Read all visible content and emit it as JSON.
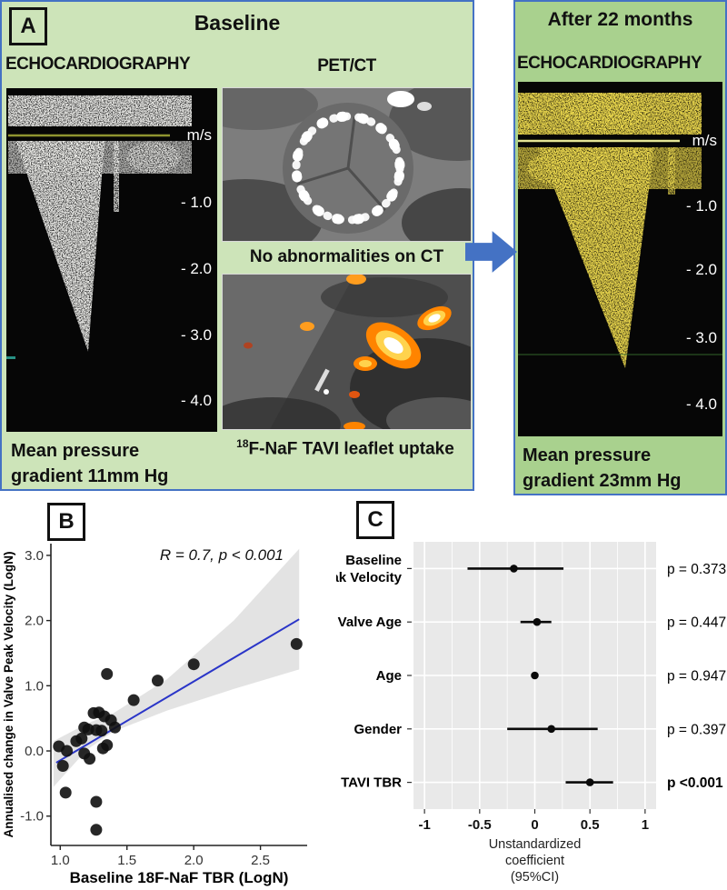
{
  "colors": {
    "panel_a_bg": "#cde4b9",
    "panel_followup_bg": "#a9d18e",
    "panel_border": "#4472c4",
    "arrow": "#4472c4",
    "regression_line": "#2a35c8",
    "ci_band": "#dcdcdc",
    "forest_bg": "#e9e9e9",
    "echo_baseline_line": "#8f9430",
    "doppler_followup_tint": "#d4af10"
  },
  "panel_a": {
    "label": "A",
    "title": "Baseline",
    "col_echo": "ECHOCARDIOGRAPHY",
    "col_petct": "PET/CT",
    "echo_scale": {
      "unit": "m/s",
      "ticks": [
        "- 1.0",
        "- 2.0",
        "- 3.0",
        "- 4.0"
      ]
    },
    "caption_ct": "No abnormalities on CT",
    "caption_pet_sup": "18",
    "caption_pet": "F-NaF TAVI leaflet uptake",
    "caption_echo_line1": "Mean pressure",
    "caption_echo_line2": "gradient 11mm Hg"
  },
  "panel_followup": {
    "title": "After 22 months",
    "col_echo": "ECHOCARDIOGRAPHY",
    "echo_scale": {
      "unit": "m/s",
      "ticks": [
        "- 1.0",
        "- 2.0",
        "- 3.0",
        "- 4.0"
      ]
    },
    "caption_line1": "Mean pressure",
    "caption_line2": "gradient 23mm Hg"
  },
  "panel_b": {
    "label": "B"
  },
  "panel_c": {
    "label": "C"
  },
  "chart_data": [
    {
      "type": "scatter",
      "annotation": "R = 0.7, p < 0.001",
      "xlabel": "Baseline 18F-NaF TBR (LogN)",
      "ylabel": "Annualised change in Valve Peak Velocity (LogN)",
      "xlim": [
        0.93,
        2.85
      ],
      "ylim": [
        -1.45,
        3.18
      ],
      "xticks": [
        1.0,
        1.5,
        2.0,
        2.5
      ],
      "yticks": [
        3.0,
        2.0,
        1.0,
        0.0,
        -1.0
      ],
      "points": [
        [
          0.99,
          0.07
        ],
        [
          1.05,
          0.0
        ],
        [
          1.02,
          -0.23
        ],
        [
          1.04,
          -0.64
        ],
        [
          1.12,
          0.15
        ],
        [
          1.16,
          0.19
        ],
        [
          1.18,
          0.36
        ],
        [
          1.21,
          0.33
        ],
        [
          1.18,
          -0.04
        ],
        [
          1.22,
          -0.12
        ],
        [
          1.25,
          0.58
        ],
        [
          1.29,
          0.59
        ],
        [
          1.33,
          0.53
        ],
        [
          1.27,
          0.32
        ],
        [
          1.31,
          0.31
        ],
        [
          1.27,
          -0.78
        ],
        [
          1.27,
          -1.21
        ],
        [
          1.32,
          0.04
        ],
        [
          1.35,
          0.09
        ],
        [
          1.35,
          1.18
        ],
        [
          1.38,
          0.47
        ],
        [
          1.41,
          0.36
        ],
        [
          1.55,
          0.78
        ],
        [
          1.73,
          1.08
        ],
        [
          2.0,
          1.33
        ],
        [
          2.77,
          1.64
        ]
      ],
      "regression": {
        "x1": 0.97,
        "y1": -0.18,
        "x2": 2.79,
        "y2": 2.02
      },
      "ci_band": {
        "upper": [
          [
            0.95,
            0.15
          ],
          [
            1.2,
            0.42
          ],
          [
            1.4,
            0.58
          ],
          [
            1.8,
            1.1
          ],
          [
            2.3,
            2.0
          ],
          [
            2.79,
            3.1
          ]
        ],
        "lower": [
          [
            2.79,
            1.25
          ],
          [
            2.3,
            0.95
          ],
          [
            1.8,
            0.62
          ],
          [
            1.4,
            0.3
          ],
          [
            1.2,
            0.02
          ],
          [
            0.95,
            -0.55
          ]
        ]
      },
      "legend": "none",
      "grid": "off"
    },
    {
      "type": "forest",
      "xlabel_lines": [
        "Unstandardized",
        "coefficient",
        "(95%CI)"
      ],
      "xlim": [
        -1.1,
        1.1
      ],
      "xticks": [
        -1,
        -0.5,
        0,
        0.5,
        1
      ],
      "minor_ticks": [
        -0.75,
        -0.25,
        0.25,
        0.75
      ],
      "grid": "on",
      "rows": [
        {
          "label_lines": [
            "Baseline",
            "Peak Velocity"
          ],
          "estimate": -0.19,
          "lo": -0.61,
          "hi": 0.26,
          "p": "p = 0.373",
          "bold_p": false
        },
        {
          "label_lines": [
            "Valve Age"
          ],
          "estimate": 0.02,
          "lo": -0.13,
          "hi": 0.15,
          "p": "p = 0.447",
          "bold_p": false
        },
        {
          "label_lines": [
            "Age"
          ],
          "estimate": 0.0,
          "lo": -0.02,
          "hi": 0.02,
          "p": "p = 0.947",
          "bold_p": false
        },
        {
          "label_lines": [
            "Gender"
          ],
          "estimate": 0.15,
          "lo": -0.25,
          "hi": 0.57,
          "p": "p = 0.397",
          "bold_p": false
        },
        {
          "label_lines": [
            "TAVI TBR"
          ],
          "estimate": 0.5,
          "lo": 0.28,
          "hi": 0.71,
          "p": "p <0.001",
          "bold_p": true
        }
      ]
    }
  ]
}
